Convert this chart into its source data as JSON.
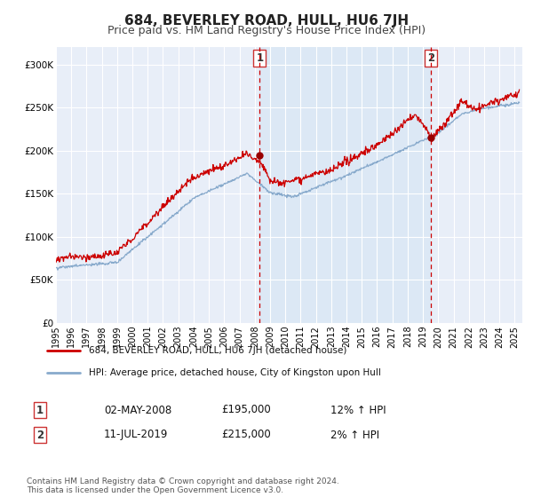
{
  "title": "684, BEVERLEY ROAD, HULL, HU6 7JH",
  "subtitle": "Price paid vs. HM Land Registry's House Price Index (HPI)",
  "title_fontsize": 11,
  "subtitle_fontsize": 9,
  "background_color": "#ffffff",
  "plot_bg_color": "#e8eef8",
  "shade_color": "#d0dcf0",
  "red_line_color": "#cc0000",
  "blue_line_color": "#88aacc",
  "marker_color": "#990000",
  "grid_color": "#ffffff",
  "ylim": [
    0,
    320000
  ],
  "yticks": [
    0,
    50000,
    100000,
    150000,
    200000,
    250000,
    300000
  ],
  "ytick_labels": [
    "£0",
    "£50K",
    "£100K",
    "£150K",
    "£200K",
    "£250K",
    "£300K"
  ],
  "xlim_start": 1995.0,
  "xlim_end": 2025.5,
  "marker1_x": 2008.33,
  "marker1_y": 195000,
  "marker2_x": 2019.53,
  "marker2_y": 215000,
  "vline1_x": 2008.33,
  "vline2_x": 2019.53,
  "shade_start": 2008.33,
  "shade_end": 2019.53,
  "legend_label_red": "684, BEVERLEY ROAD, HULL, HU6 7JH (detached house)",
  "legend_label_blue": "HPI: Average price, detached house, City of Kingston upon Hull",
  "table_row1": [
    "1",
    "02-MAY-2008",
    "£195,000",
    "12% ↑ HPI"
  ],
  "table_row2": [
    "2",
    "11-JUL-2019",
    "£215,000",
    "2% ↑ HPI"
  ],
  "footer": "Contains HM Land Registry data © Crown copyright and database right 2024.\nThis data is licensed under the Open Government Licence v3.0.",
  "xtick_years": [
    1995,
    1996,
    1997,
    1998,
    1999,
    2000,
    2001,
    2002,
    2003,
    2004,
    2005,
    2006,
    2007,
    2008,
    2009,
    2010,
    2011,
    2012,
    2013,
    2014,
    2015,
    2016,
    2017,
    2018,
    2019,
    2020,
    2021,
    2022,
    2023,
    2024,
    2025
  ]
}
